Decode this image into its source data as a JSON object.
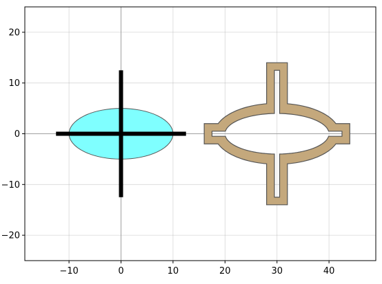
{
  "chart_data": {
    "type": "scatter",
    "title": "",
    "xlabel": "",
    "ylabel": "",
    "xlim": [
      -18.5,
      49
    ],
    "ylim": [
      -25,
      25
    ],
    "grid": true,
    "xticks": [
      {
        "value": -10,
        "label": "−10"
      },
      {
        "value": 0,
        "label": "0"
      },
      {
        "value": 10,
        "label": "10"
      },
      {
        "value": 20,
        "label": "20"
      },
      {
        "value": 30,
        "label": "30"
      },
      {
        "value": 40,
        "label": "40"
      }
    ],
    "yticks": [
      {
        "value": -20,
        "label": "−20"
      },
      {
        "value": -10,
        "label": "−10"
      },
      {
        "value": 0,
        "label": "0"
      },
      {
        "value": 10,
        "label": "10"
      },
      {
        "value": 20,
        "label": "20"
      }
    ],
    "reference_lines": {
      "x": 0,
      "y": 0
    },
    "shapes": [
      {
        "kind": "ellipse",
        "center": [
          0,
          0
        ],
        "semi_axes": [
          10,
          5
        ],
        "fill": "#00ffff",
        "fill_opacity": 0.5,
        "stroke": "#555555"
      },
      {
        "kind": "cross",
        "center": [
          0,
          0
        ],
        "half_length": 12.5,
        "color": "#000000"
      },
      {
        "kind": "ring-ellipse-with-ports",
        "center": [
          30,
          0
        ],
        "outer_semi_axes": [
          12,
          6
        ],
        "inner_semi_axes": [
          10,
          4
        ],
        "horizontal_port": {
          "x_range": [
            16,
            44
          ],
          "outer_half_height": 2,
          "inner_half_height": 0.5
        },
        "vertical_port": {
          "y_range": [
            -14,
            14
          ],
          "outer_half_width": 2,
          "inner_half_width": 0.5
        },
        "fill": "#c4a87c",
        "stroke": "#555555"
      }
    ]
  }
}
